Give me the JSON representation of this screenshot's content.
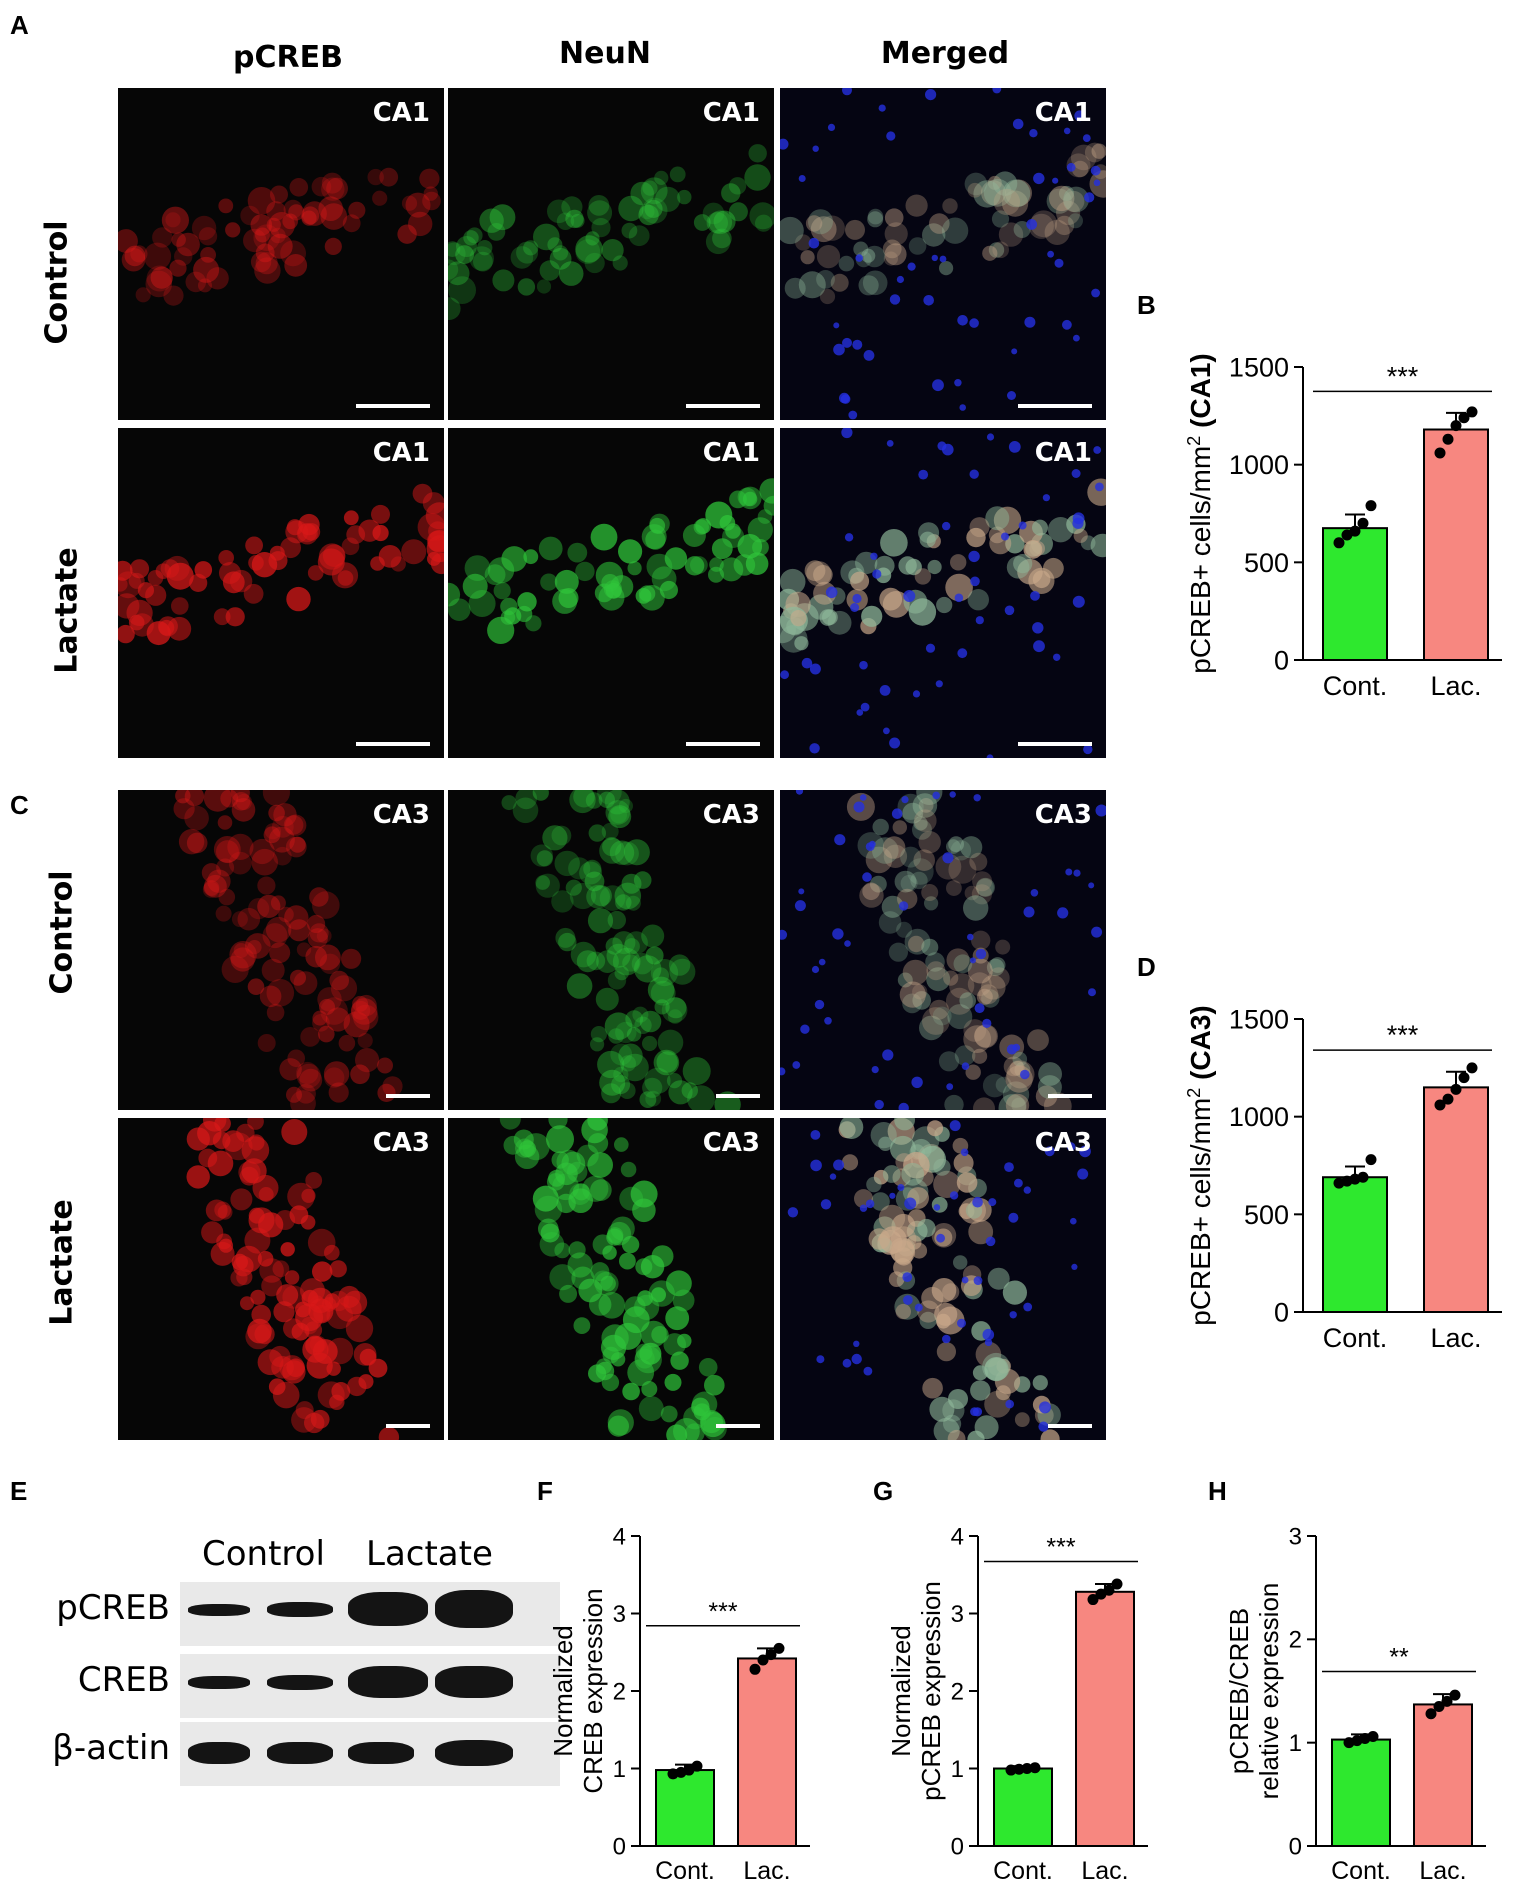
{
  "panels": {
    "A": "A",
    "B": "B",
    "C": "C",
    "D": "D",
    "E": "E",
    "F": "F",
    "G": "G",
    "H": "H"
  },
  "columns": [
    "pCREB",
    "NeuN",
    "Merged"
  ],
  "rows_top": [
    "Control",
    "Lactate"
  ],
  "rows_bottom": [
    "Control",
    "Lactate"
  ],
  "region_top": "CA1",
  "region_bottom": "CA3",
  "colors": {
    "control": "#2ee82e",
    "lactate": "#f78780",
    "pcreb_stain": "#d81818",
    "neun_stain": "#2fc53a",
    "dapi_stain": "#2430e0"
  },
  "western_blot": {
    "groups": [
      "Control",
      "Lactate"
    ],
    "proteins": [
      "pCREB",
      "CREB",
      "β-actin"
    ]
  },
  "chart_data": [
    {
      "id": "B",
      "type": "bar",
      "categories": [
        "Cont.",
        "Lac."
      ],
      "values": [
        675,
        1180
      ],
      "errors": [
        70,
        85
      ],
      "points": [
        [
          600,
          640,
          660,
          700,
          790
        ],
        [
          1060,
          1130,
          1200,
          1240,
          1270
        ]
      ],
      "ylabel_main": "pCREB+ cells/mm",
      "ylabel_sup": "2",
      "ylabel_bold": " (CA1)",
      "ylim": [
        0,
        1500
      ],
      "yticks": [
        0,
        500,
        1000,
        1500
      ],
      "significance": "***"
    },
    {
      "id": "D",
      "type": "bar",
      "categories": [
        "Cont.",
        "Lac."
      ],
      "values": [
        690,
        1150
      ],
      "errors": [
        55,
        80
      ],
      "points": [
        [
          660,
          670,
          680,
          690,
          780
        ],
        [
          1060,
          1090,
          1140,
          1200,
          1250
        ]
      ],
      "ylabel_main": "pCREB+ cells/mm",
      "ylabel_sup": "2",
      "ylabel_bold": " (CA3)",
      "ylim": [
        0,
        1500
      ],
      "yticks": [
        0,
        500,
        1000,
        1500
      ],
      "significance": "***"
    },
    {
      "id": "F",
      "type": "bar",
      "categories": [
        "Cont.",
        "Lac."
      ],
      "values": [
        0.98,
        2.42
      ],
      "errors": [
        0.07,
        0.13
      ],
      "points": [
        [
          0.93,
          0.95,
          0.98,
          1.03
        ],
        [
          2.28,
          2.4,
          2.47,
          2.55
        ]
      ],
      "ylabel_lines": [
        "Normalized",
        "CREB expression"
      ],
      "ylim": [
        0,
        4
      ],
      "yticks": [
        0,
        1,
        2,
        3,
        4
      ],
      "significance": "***"
    },
    {
      "id": "G",
      "type": "bar",
      "categories": [
        "Cont.",
        "Lac."
      ],
      "values": [
        1.0,
        3.28
      ],
      "errors": [
        0.03,
        0.1
      ],
      "points": [
        [
          0.98,
          0.99,
          1.0,
          1.01
        ],
        [
          3.18,
          3.25,
          3.3,
          3.38
        ]
      ],
      "ylabel_lines": [
        "Normalized",
        "pCREB expression"
      ],
      "ylim": [
        0,
        4
      ],
      "yticks": [
        0,
        1,
        2,
        3,
        4
      ],
      "significance": "***"
    },
    {
      "id": "H",
      "type": "bar",
      "categories": [
        "Cont.",
        "Lac."
      ],
      "values": [
        1.03,
        1.37
      ],
      "errors": [
        0.05,
        0.1
      ],
      "points": [
        [
          1.0,
          1.02,
          1.04,
          1.06
        ],
        [
          1.28,
          1.35,
          1.4,
          1.46
        ]
      ],
      "ylabel_lines": [
        "pCREB/CREB",
        "relative expression"
      ],
      "ylim": [
        0,
        3
      ],
      "yticks": [
        0,
        1,
        2,
        3
      ],
      "significance": "**"
    }
  ]
}
